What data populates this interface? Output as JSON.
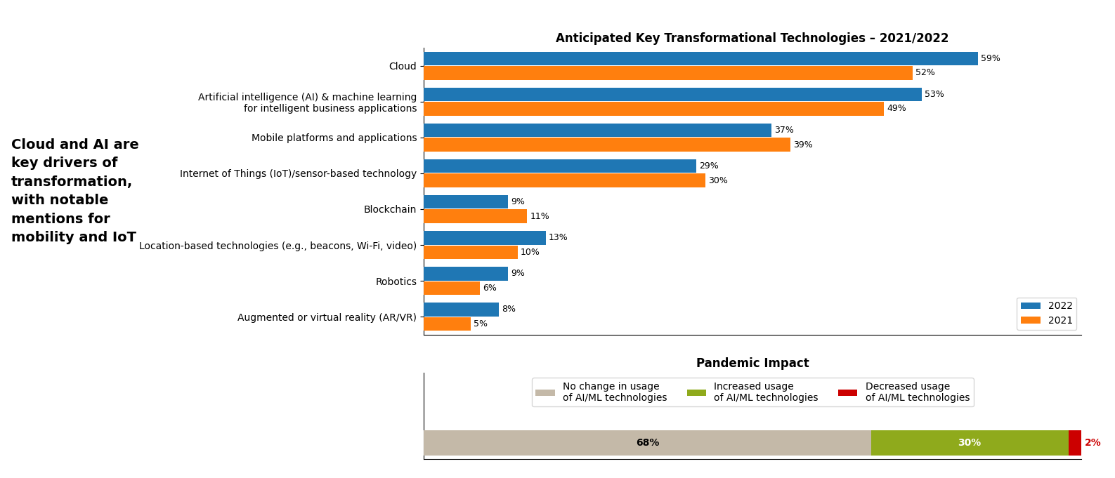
{
  "chart_data": [
    {
      "type": "bar",
      "orientation": "horizontal",
      "title": "Anticipated Key Transformational Technologies – 2021/2022",
      "categories": [
        "Cloud",
        "Artificial intelligence (AI) & machine learning\nfor intelligent business applications",
        "Mobile platforms and applications",
        "Internet of Things (IoT)/sensor-based technology",
        "Blockchain",
        "Location-based technologies (e.g., beacons, Wi-Fi, video)",
        "Robotics",
        "Augmented or virtual reality (AR/VR)"
      ],
      "series": [
        {
          "name": "2022",
          "values": [
            59,
            53,
            37,
            29,
            9,
            13,
            9,
            8
          ],
          "value_labels": [
            "59%",
            "53%",
            "37%",
            "29%",
            "9%",
            "13%",
            "9%",
            "8%"
          ]
        },
        {
          "name": "2021",
          "values": [
            52,
            49,
            39,
            30,
            11,
            10,
            6,
            5
          ],
          "value_labels": [
            "52%",
            "49%",
            "39%",
            "30%",
            "11%",
            "10%",
            "6%",
            "5%"
          ]
        }
      ],
      "xlim": [
        0,
        70
      ],
      "tick_labels": "y",
      "data_labels": true,
      "legend": "lower right",
      "annotations": [
        "Cloud and AI are\nkey drivers of\ntransformation,\nwith notable\nmentions for\nmobility and IoT"
      ]
    },
    {
      "type": "bar",
      "orientation": "horizontal",
      "stacked": true,
      "title": "Pandemic Impact",
      "categories": [
        null
      ],
      "series": [
        {
          "name": "No change in usage\nof AI/ML technologies",
          "color": "#c4b9a8",
          "values": [
            68
          ],
          "value_labels": [
            "68%"
          ]
        },
        {
          "name": "Increased usage\nof AI/ML technologies",
          "color": "#8faa1c",
          "values": [
            30
          ],
          "value_labels": [
            "30%"
          ]
        },
        {
          "name": "Decreased usage\nof AI/ML technologies",
          "color": "#cc0000",
          "values": [
            2
          ],
          "value_labels": [
            "2%"
          ]
        }
      ],
      "xlim": [
        0,
        100
      ],
      "tick_labels": false,
      "data_labels": true,
      "legend": "upper center"
    }
  ]
}
